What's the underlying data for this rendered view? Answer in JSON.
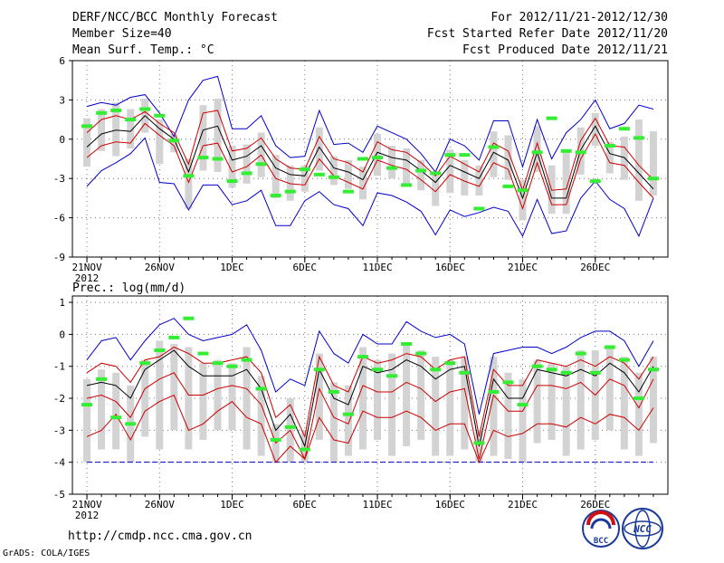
{
  "header": {
    "title": "DERF/NCC/BCC Monthly Forecast",
    "member_size": "Member Size=40",
    "period": "For 2012/11/21-2012/12/30",
    "fcst_started": "Fcst Started Refer Date 2012/11/20",
    "fcst_produced": "Fcst Produced Date 2012/11/21"
  },
  "footer": {
    "url": "http://cmdp.ncc.cma.gov.cn",
    "grads": "GrADS: COLA/IGES",
    "logo_left_text": "BCC",
    "logo_right_text": "NCC"
  },
  "colors": {
    "box": "#d3d3d3",
    "mean": "#000000",
    "std": "#cc0000",
    "extreme": "#0000cc",
    "obs": "#33ee33",
    "grid": "#777777"
  },
  "chart_data": [
    {
      "type": "line",
      "title": "Mean Surf. Temp.: °C",
      "x_labels": [
        "21NOV",
        "26NOV",
        "1DEC",
        "6DEC",
        "11DEC",
        "16DEC",
        "21DEC",
        "26DEC"
      ],
      "x_label_days": [
        1,
        6,
        11,
        16,
        21,
        26,
        31,
        36
      ],
      "x_sublabel": "2012",
      "xlim": [
        0,
        41
      ],
      "ylim": [
        -9,
        6
      ],
      "yticks": [
        -9,
        -6,
        -3,
        0,
        3,
        6
      ],
      "days": [
        1,
        2,
        3,
        4,
        5,
        6,
        7,
        8,
        9,
        10,
        11,
        12,
        13,
        14,
        15,
        16,
        17,
        18,
        19,
        20,
        21,
        22,
        23,
        24,
        25,
        26,
        27,
        28,
        29,
        30,
        31,
        32,
        33,
        34,
        35,
        36,
        37,
        38,
        39,
        40
      ],
      "series": [
        {
          "name": "mean",
          "values": [
            -0.6,
            0.4,
            0.7,
            0.6,
            1.8,
            0.8,
            0.0,
            -2.5,
            0.7,
            1.0,
            -1.6,
            -1.3,
            -0.5,
            -2.2,
            -2.7,
            -2.8,
            -0.6,
            -2.2,
            -2.5,
            -3.1,
            -1.0,
            -1.4,
            -1.6,
            -2.4,
            -3.3,
            -2.0,
            -2.5,
            -3.0,
            -1.0,
            -1.6,
            -4.5,
            -1.0,
            -4.5,
            -4.5,
            -0.8,
            1.0,
            -1.1,
            -1.4,
            -2.6,
            -3.8
          ]
        },
        {
          "name": "upper-std",
          "values": [
            0.5,
            1.5,
            1.8,
            1.5,
            2.1,
            1.2,
            0.5,
            -1.9,
            2.0,
            2.2,
            -0.9,
            -0.7,
            0.1,
            -1.5,
            -2.2,
            -2.3,
            0.2,
            -1.5,
            -1.8,
            -2.5,
            -0.2,
            -0.8,
            -1.0,
            -1.8,
            -2.8,
            -1.3,
            -1.9,
            -2.5,
            -0.3,
            -0.9,
            -3.9,
            -0.3,
            -3.9,
            -3.8,
            -0.1,
            1.6,
            -0.5,
            -0.6,
            -2.0,
            -3.1
          ]
        },
        {
          "name": "lower-std",
          "values": [
            -1.4,
            -0.5,
            -0.2,
            -0.3,
            1.2,
            0.3,
            -0.5,
            -3.3,
            -0.5,
            -0.3,
            -2.5,
            -2.1,
            -1.2,
            -3.0,
            -3.4,
            -3.5,
            -1.5,
            -2.8,
            -3.3,
            -3.8,
            -1.6,
            -2.0,
            -2.3,
            -3.1,
            -4.0,
            -2.7,
            -3.2,
            -3.6,
            -1.8,
            -2.3,
            -5.3,
            -1.8,
            -5.0,
            -5.0,
            -1.5,
            0.4,
            -1.8,
            -2.0,
            -3.3,
            -4.5
          ]
        },
        {
          "name": "max",
          "values": [
            2.5,
            2.8,
            2.6,
            3.2,
            3.4,
            2.0,
            0.2,
            3.0,
            4.5,
            4.8,
            0.8,
            0.8,
            1.8,
            -0.5,
            -1.4,
            -1.3,
            2.2,
            -0.4,
            -0.3,
            -1.0,
            1.0,
            0.5,
            0.0,
            -1.1,
            -2.5,
            0.0,
            -0.5,
            -1.6,
            1.4,
            1.4,
            -2.1,
            1.5,
            -1.5,
            0.5,
            1.5,
            3.0,
            0.8,
            1.2,
            2.6,
            2.3
          ]
        },
        {
          "name": "min",
          "values": [
            -3.6,
            -2.4,
            -1.8,
            -1.1,
            0.1,
            -3.3,
            -3.4,
            -5.4,
            -3.5,
            -3.5,
            -5.0,
            -4.7,
            -3.9,
            -6.6,
            -6.6,
            -4.7,
            -4.0,
            -5.0,
            -5.3,
            -6.6,
            -4.1,
            -4.3,
            -4.8,
            -5.5,
            -7.3,
            -5.4,
            -5.9,
            -5.6,
            -5.2,
            -5.5,
            -7.4,
            -4.6,
            -7.2,
            -7.0,
            -4.5,
            -3.2,
            -4.6,
            -5.3,
            -7.4,
            -4.5
          ]
        },
        {
          "name": "box-top",
          "values": [
            1.6,
            2.3,
            2.8,
            2.3,
            3.1,
            1.5,
            0.4,
            -1.5,
            2.6,
            3.1,
            -0.5,
            -0.4,
            0.5,
            -1.2,
            -2.0,
            -2.0,
            0.9,
            -1.3,
            -1.6,
            -2.1,
            0.4,
            -0.5,
            -0.7,
            -1.6,
            -2.5,
            -0.8,
            -1.6,
            -2.0,
            0.6,
            0.3,
            -3.1,
            1.0,
            -2.0,
            -1.0,
            0.9,
            2.0,
            -0.2,
            0.2,
            1.5,
            0.6
          ]
        },
        {
          "name": "box-bottom",
          "values": [
            -2.1,
            -0.9,
            -1.3,
            -0.7,
            0.5,
            -1.9,
            -1.0,
            -5.3,
            -2.4,
            -2.5,
            -3.7,
            -3.4,
            -2.9,
            -4.5,
            -4.7,
            -4.0,
            -2.4,
            -3.5,
            -3.8,
            -4.6,
            -2.8,
            -3.0,
            -3.5,
            -3.9,
            -5.1,
            -4.1,
            -4.3,
            -4.3,
            -2.9,
            -3.1,
            -6.2,
            -2.5,
            -5.7,
            -5.7,
            -2.7,
            -0.5,
            -2.6,
            -3.1,
            -4.7,
            -4.3
          ]
        },
        {
          "name": "observed",
          "values": [
            1.0,
            2.0,
            2.2,
            1.5,
            2.3,
            1.8,
            -0.1,
            -2.8,
            -1.4,
            -1.5,
            -3.2,
            -2.6,
            -1.9,
            -4.3,
            -4.0,
            -2.3,
            -2.7,
            -2.9,
            -4.0,
            -1.5,
            -1.4,
            -2.2,
            -3.5,
            -2.4,
            -2.6,
            -1.2,
            -1.2,
            -5.3,
            -0.6,
            -3.6,
            -3.9,
            -1.0,
            1.6,
            -0.9,
            -1.0,
            -3.2,
            -0.5,
            0.8,
            0.1,
            -3.0
          ]
        }
      ]
    },
    {
      "type": "line",
      "title": "Prec.: log(mm/d)",
      "x_labels": [
        "21NOV",
        "26NOV",
        "1DEC",
        "6DEC",
        "11DEC",
        "16DEC",
        "21DEC",
        "26DEC"
      ],
      "x_label_days": [
        1,
        6,
        11,
        16,
        21,
        26,
        31,
        36
      ],
      "x_sublabel": "2012",
      "xlim": [
        0,
        41
      ],
      "ylim": [
        -5,
        1.2
      ],
      "yticks": [
        -5,
        -4,
        -3,
        -2,
        -1,
        0,
        1
      ],
      "floor_value": -4,
      "days": [
        1,
        2,
        3,
        4,
        5,
        6,
        7,
        8,
        9,
        10,
        11,
        12,
        13,
        14,
        15,
        16,
        17,
        18,
        19,
        20,
        21,
        22,
        23,
        24,
        25,
        26,
        27,
        28,
        29,
        30,
        31,
        32,
        33,
        34,
        35,
        36,
        37,
        38,
        39,
        40
      ],
      "series": [
        {
          "name": "mean",
          "values": [
            -1.6,
            -1.5,
            -1.6,
            -2.0,
            -1.1,
            -0.8,
            -0.5,
            -1.0,
            -1.3,
            -1.3,
            -1.3,
            -1.1,
            -1.7,
            -3.0,
            -2.5,
            -3.5,
            -1.1,
            -2.0,
            -2.2,
            -1.0,
            -1.2,
            -1.1,
            -0.8,
            -1.0,
            -1.4,
            -1.1,
            -1.0,
            -3.5,
            -1.4,
            -2.0,
            -2.0,
            -1.1,
            -1.2,
            -1.3,
            -1.1,
            -1.3,
            -0.9,
            -1.2,
            -1.8,
            -1.0
          ]
        },
        {
          "name": "upper-std",
          "values": [
            -1.2,
            -0.9,
            -1.0,
            -1.5,
            -0.8,
            -0.7,
            -0.4,
            -0.6,
            -0.9,
            -0.9,
            -0.8,
            -0.7,
            -1.2,
            -2.6,
            -2.2,
            -3.2,
            -0.7,
            -1.6,
            -1.8,
            -0.7,
            -0.9,
            -0.8,
            -0.6,
            -0.7,
            -1.1,
            -0.8,
            -0.7,
            -3.2,
            -1.1,
            -1.6,
            -1.6,
            -0.8,
            -0.9,
            -1.0,
            -0.8,
            -1.0,
            -0.7,
            -0.9,
            -1.4,
            -0.7
          ]
        },
        {
          "name": "lower-std",
          "values": [
            -3.2,
            -3.0,
            -2.5,
            -3.3,
            -2.4,
            -2.1,
            -1.9,
            -3.0,
            -2.8,
            -2.4,
            -2.1,
            -2.6,
            -2.8,
            -4.0,
            -3.5,
            -3.9,
            -2.6,
            -3.3,
            -3.4,
            -2.4,
            -2.6,
            -2.6,
            -2.4,
            -2.6,
            -3.0,
            -2.8,
            -2.8,
            -4.0,
            -3.0,
            -3.2,
            -3.1,
            -2.8,
            -2.8,
            -2.9,
            -2.6,
            -2.8,
            -2.5,
            -2.6,
            -3.0,
            -2.3
          ]
        },
        {
          "name": "lower-std-2",
          "values": [
            -2.0,
            -1.9,
            -2.1,
            -2.6,
            -1.7,
            -1.4,
            -1.2,
            -1.9,
            -1.9,
            -1.7,
            -1.6,
            -1.7,
            -2.2,
            -3.4,
            -3.0,
            -3.9,
            -1.7,
            -2.6,
            -2.8,
            -1.6,
            -1.8,
            -1.8,
            -1.5,
            -1.7,
            -2.1,
            -1.8,
            -1.7,
            -3.9,
            -1.9,
            -2.4,
            -2.4,
            -1.6,
            -1.6,
            -1.7,
            -1.5,
            -1.9,
            -1.4,
            -1.6,
            -2.3,
            -1.4
          ]
        },
        {
          "name": "max",
          "values": [
            -0.8,
            -0.2,
            -0.1,
            -0.8,
            -0.2,
            0.3,
            0.5,
            0.0,
            -0.2,
            -0.1,
            0.0,
            0.3,
            -0.5,
            -1.8,
            -1.4,
            -1.6,
            0.1,
            -0.6,
            -0.9,
            0.0,
            -0.3,
            -0.3,
            0.4,
            0.1,
            -0.1,
            0.0,
            -0.3,
            -2.5,
            -0.6,
            -0.5,
            -0.4,
            -0.4,
            -0.6,
            -0.4,
            -0.1,
            0.1,
            0.1,
            -0.2,
            -1.0,
            -0.2
          ]
        },
        {
          "name": "min",
          "values": [
            -4.0,
            -4.0,
            -4.0,
            -4.0,
            -4.0,
            -4.0,
            -4.0,
            -4.0,
            -4.0,
            -4.0,
            -4.0,
            -4.0,
            -4.0,
            -4.0,
            -4.0,
            -4.0,
            -4.0,
            -4.0,
            -4.0,
            -4.0,
            -4.0,
            -4.0,
            -4.0,
            -4.0,
            -4.0,
            -4.0,
            -4.0,
            -4.0,
            -4.0,
            -4.0,
            -4.0,
            -4.0,
            -4.0,
            -4.0,
            -4.0,
            -4.0,
            -4.0,
            -4.0,
            -4.0,
            -4.0
          ]
        },
        {
          "name": "box-top",
          "values": [
            -1.4,
            -1.1,
            -1.2,
            -1.6,
            -0.8,
            -0.2,
            -0.3,
            -0.4,
            -0.9,
            -0.8,
            -0.9,
            -0.4,
            -1.3,
            -2.8,
            -2.0,
            -3.0,
            -0.6,
            -1.5,
            -1.6,
            -0.4,
            -0.8,
            -0.6,
            -0.3,
            -0.5,
            -0.7,
            -0.8,
            -0.7,
            -3.0,
            -0.7,
            -1.2,
            -1.4,
            -0.8,
            -0.9,
            -1.0,
            -0.5,
            -0.5,
            -0.4,
            -0.7,
            -1.2,
            -0.7
          ]
        },
        {
          "name": "box-bottom",
          "values": [
            -4.0,
            -3.6,
            -3.6,
            -4.0,
            -3.2,
            -3.6,
            -3.0,
            -3.6,
            -3.3,
            -3.0,
            -3.0,
            -3.6,
            -3.8,
            -4.0,
            -4.0,
            -4.0,
            -3.3,
            -4.0,
            -3.8,
            -3.6,
            -3.3,
            -3.8,
            -3.5,
            -3.3,
            -3.8,
            -3.8,
            -3.6,
            -4.0,
            -3.8,
            -3.9,
            -4.0,
            -3.4,
            -3.3,
            -3.8,
            -3.6,
            -3.3,
            -3.0,
            -3.6,
            -3.8,
            -3.4
          ]
        },
        {
          "name": "observed",
          "values": [
            -2.2,
            -1.4,
            -2.6,
            -2.8,
            -0.9,
            -0.5,
            -0.1,
            0.5,
            -0.6,
            -0.9,
            -1.0,
            -0.8,
            -1.7,
            -3.3,
            -2.9,
            -3.6,
            -1.1,
            -1.8,
            -2.5,
            -0.7,
            -1.1,
            -1.3,
            -0.3,
            -0.6,
            -1.1,
            -0.9,
            -1.2,
            -3.4,
            -1.8,
            -1.5,
            -2.2,
            -1.0,
            -1.1,
            -1.2,
            -0.6,
            -1.2,
            -0.4,
            -0.8,
            -2.0,
            -1.1
          ]
        }
      ]
    }
  ]
}
